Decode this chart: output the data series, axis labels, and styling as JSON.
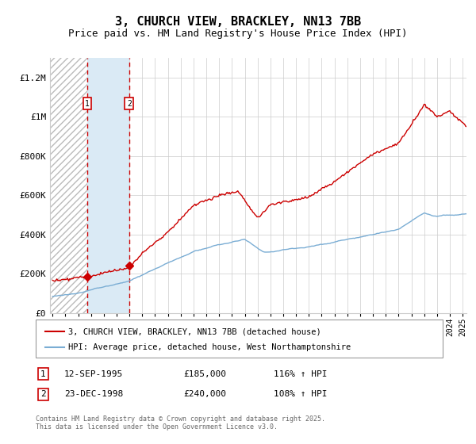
{
  "title": "3, CHURCH VIEW, BRACKLEY, NN13 7BB",
  "subtitle": "Price paid vs. HM Land Registry's House Price Index (HPI)",
  "title_fontsize": 11,
  "subtitle_fontsize": 9,
  "ylim": [
    0,
    1300000
  ],
  "yticks": [
    0,
    200000,
    400000,
    600000,
    800000,
    1000000,
    1200000
  ],
  "ytick_labels": [
    "£0",
    "£200K",
    "£400K",
    "£600K",
    "£800K",
    "£1M",
    "£1.2M"
  ],
  "sale1_date": 1995.71,
  "sale1_price": 185000,
  "sale1_label": "1",
  "sale2_date": 1998.98,
  "sale2_price": 240000,
  "sale2_label": "2",
  "legend1": "3, CHURCH VIEW, BRACKLEY, NN13 7BB (detached house)",
  "legend2": "HPI: Average price, detached house, West Northamptonshire",
  "table_row1": [
    "1",
    "12-SEP-1995",
    "£185,000",
    "116% ↑ HPI"
  ],
  "table_row2": [
    "2",
    "23-DEC-1998",
    "£240,000",
    "108% ↑ HPI"
  ],
  "footer": "Contains HM Land Registry data © Crown copyright and database right 2025.\nThis data is licensed under the Open Government Licence v3.0.",
  "line_color_red": "#cc0000",
  "line_color_blue": "#7aadd4",
  "background_color": "#ffffff",
  "grid_color": "#cccccc",
  "xstart": 1993,
  "xend": 2025,
  "hatch_color": "#bbbbbb",
  "shade_color": "#daeaf5"
}
